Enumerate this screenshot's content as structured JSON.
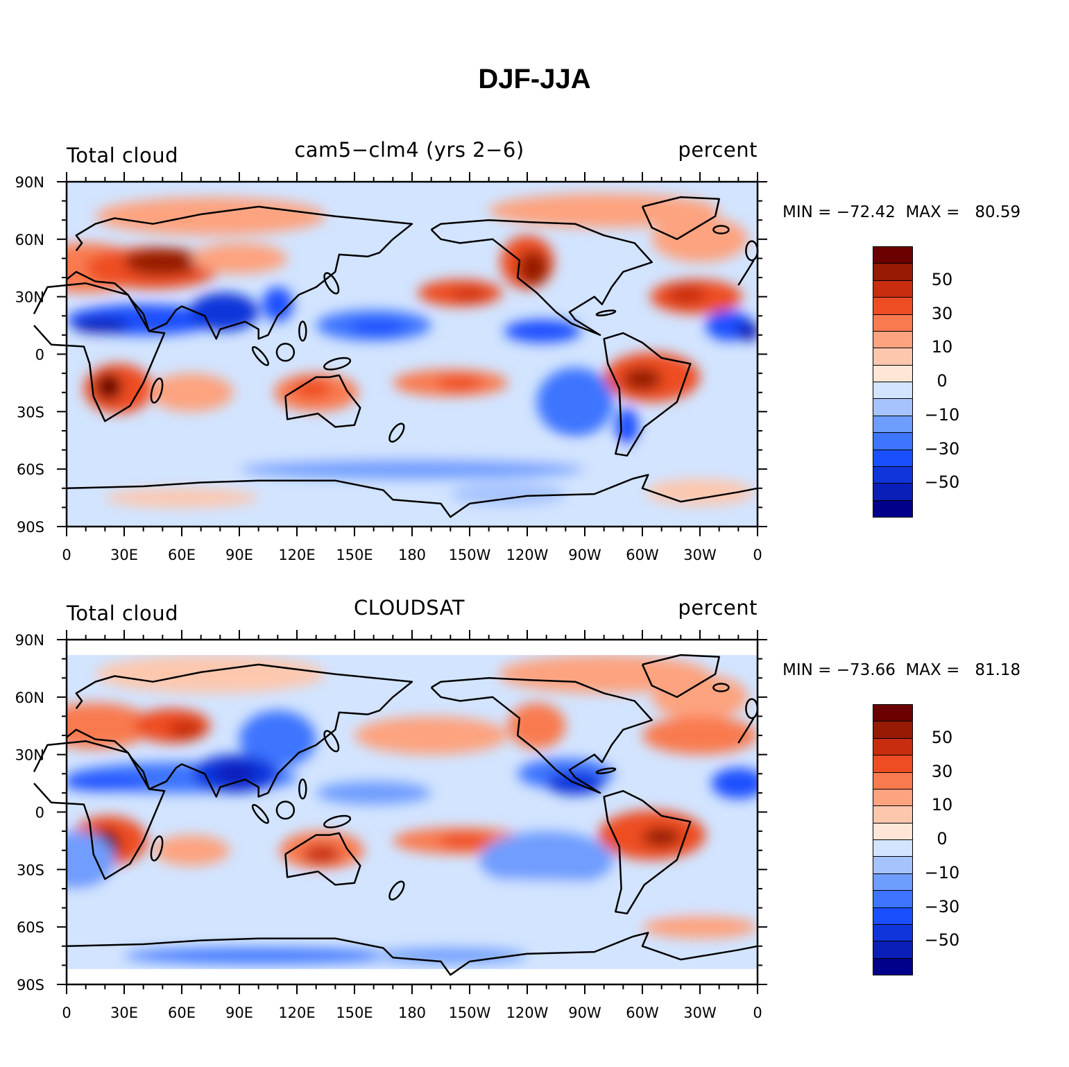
{
  "figure": {
    "title": "DJF-JJA"
  },
  "colors": {
    "levels": [
      "#00008b",
      "#0a1fb8",
      "#1035da",
      "#1a4fff",
      "#3d75ff",
      "#6f9dfe",
      "#a6c3ff",
      "#d2e4ff",
      "#ffe6d6",
      "#fdc7ae",
      "#fda37f",
      "#f97a4f",
      "#ee4d24",
      "#c92d0f",
      "#961a04",
      "#6a0000"
    ],
    "land_outline": "#000000",
    "axes": "#000000"
  },
  "colorbar": {
    "labels": [
      "50",
      "30",
      "10",
      "0",
      "−10",
      "−30",
      "−50"
    ]
  },
  "axis_ticks": {
    "lat": [
      "90N",
      "60N",
      "30N",
      "0",
      "30S",
      "60S",
      "90S"
    ],
    "lon": [
      "0",
      "30E",
      "60E",
      "90E",
      "120E",
      "150E",
      "180",
      "150W",
      "120W",
      "90W",
      "60W",
      "30W",
      "0"
    ]
  },
  "panels": [
    {
      "left_label": "Total cloud",
      "center_label": "cam5−clm4 (yrs 2−6)",
      "right_label": "percent",
      "stats": "MIN = −72.42  MAX =   80.59",
      "data_lat_range": [
        -90,
        90
      ]
    },
    {
      "left_label": "Total cloud",
      "center_label": "CLOUDSAT",
      "right_label": "percent",
      "stats": "MIN = −73.66  MAX =   81.18",
      "data_lat_range": [
        -82,
        82
      ]
    }
  ],
  "chart_data": {
    "type": "heatmap",
    "title": "DJF-JJA",
    "field": "Total cloud",
    "units": "percent",
    "contour_levels": [
      -60,
      -50,
      -40,
      -30,
      -20,
      -10,
      -5,
      0,
      5,
      10,
      20,
      30,
      40,
      50,
      60
    ],
    "colorbar_tick_labels": [
      -50,
      -30,
      -10,
      0,
      10,
      30,
      50
    ],
    "xlim": [
      0,
      360
    ],
    "ylim": [
      -90,
      90
    ],
    "maps": [
      {
        "name": "cam5−clm4 (yrs 2−6)",
        "min": -72.42,
        "max": 80.59
      },
      {
        "name": "CLOUDSAT",
        "min": -73.66,
        "max": 81.18
      }
    ]
  }
}
